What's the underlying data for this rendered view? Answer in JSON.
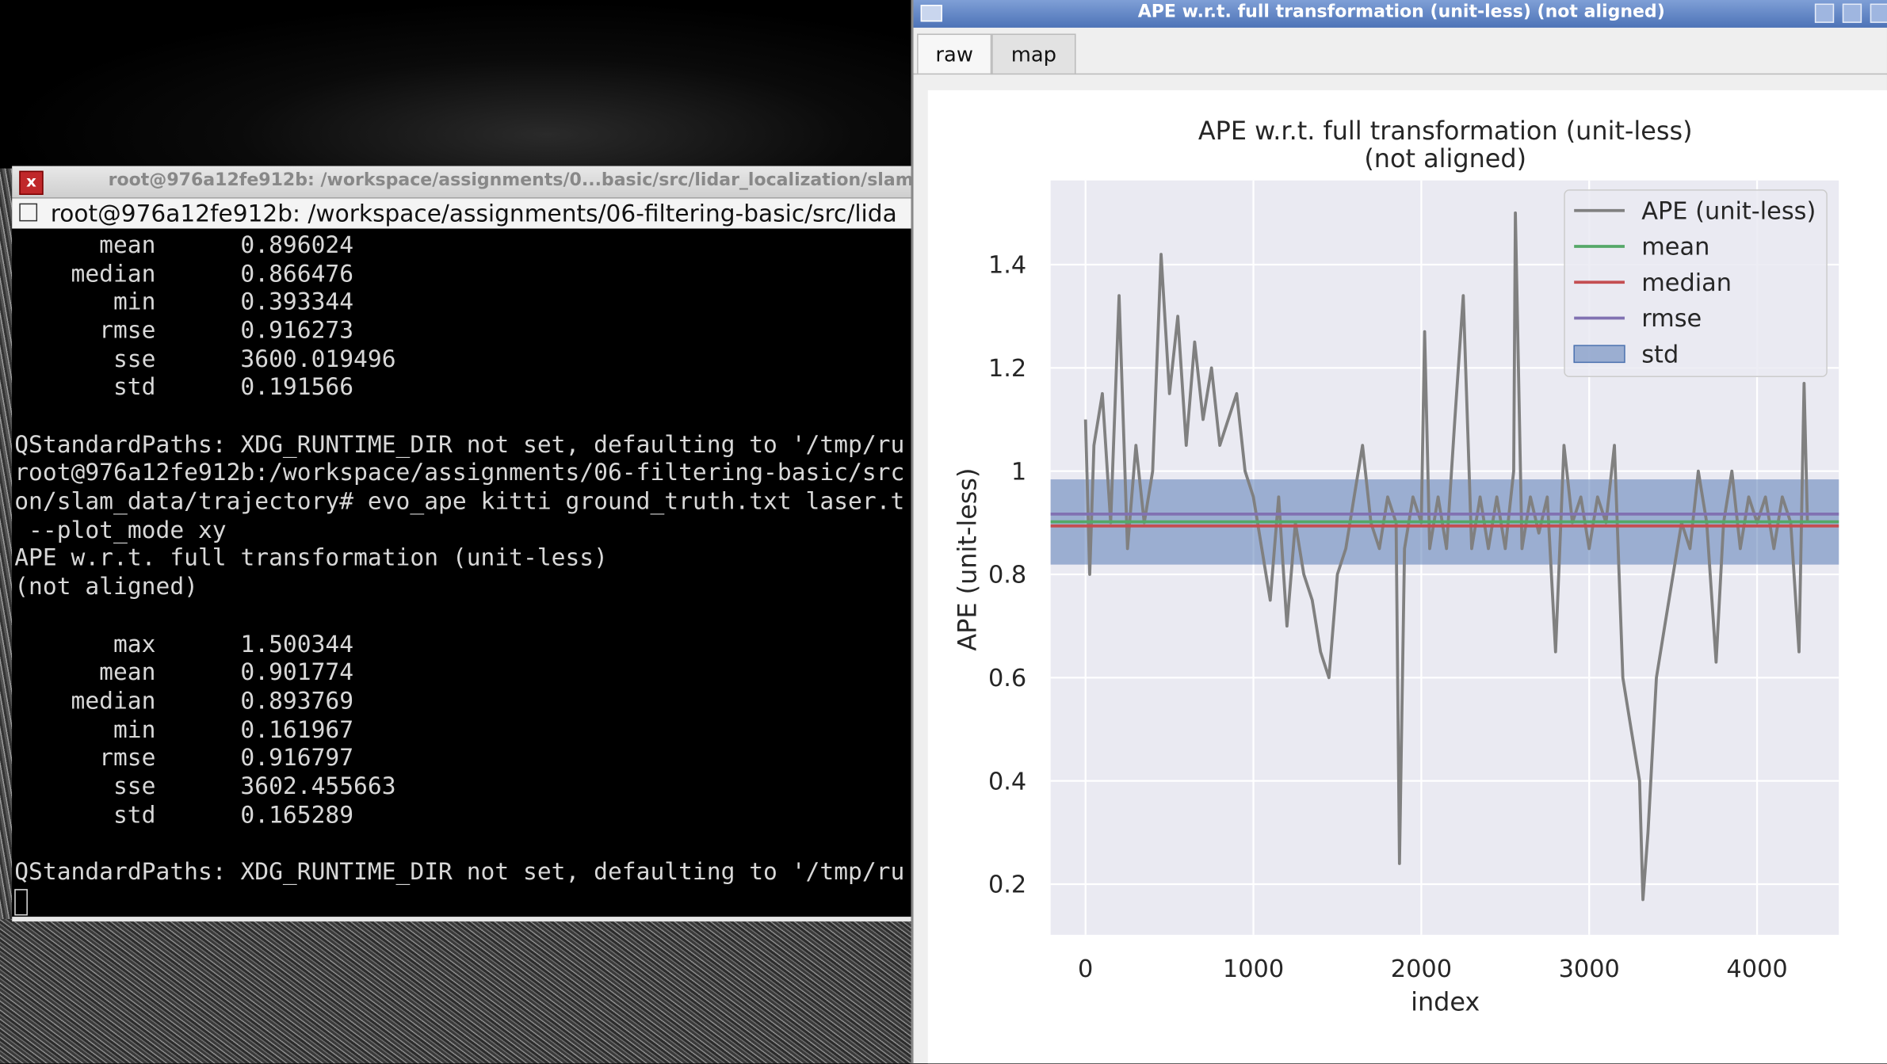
{
  "terminal": {
    "window_title": "root@976a12fe912b: /workspace/assignments/0...basic/src/lidar_localization/slam",
    "close_icon": "x",
    "tab_title": "root@976a12fe912b: /workspace/assignments/06-filtering-basic/src/lida",
    "stats_1": [
      {
        "label": "mean",
        "value": "0.896024"
      },
      {
        "label": "median",
        "value": "0.866476"
      },
      {
        "label": "min",
        "value": "0.393344"
      },
      {
        "label": "rmse",
        "value": "0.916273"
      },
      {
        "label": "sse",
        "value": "3600.019496"
      },
      {
        "label": "std",
        "value": "0.191566"
      }
    ],
    "messages_1": [
      "QStandardPaths: XDG_RUNTIME_DIR not set, defaulting to '/tmp/ru",
      "root@976a12fe912b:/workspace/assignments/06-filtering-basic/src",
      "on/slam_data/trajectory# evo_ape kitti ground_truth.txt laser.t",
      " --plot_mode xy",
      "APE w.r.t. full transformation (unit-less)",
      "(not aligned)"
    ],
    "stats_2": [
      {
        "label": "max",
        "value": "1.500344"
      },
      {
        "label": "mean",
        "value": "0.901774"
      },
      {
        "label": "median",
        "value": "0.893769"
      },
      {
        "label": "min",
        "value": "0.161967"
      },
      {
        "label": "rmse",
        "value": "0.916797"
      },
      {
        "label": "sse",
        "value": "3602.455663"
      },
      {
        "label": "std",
        "value": "0.165289"
      }
    ],
    "messages_2": [
      "QStandardPaths: XDG_RUNTIME_DIR not set, defaulting to '/tmp/ru"
    ]
  },
  "plot_window": {
    "title": "APE w.r.t. full transformation (unit-less) (not aligned)",
    "tabs": [
      "raw",
      "map"
    ]
  },
  "chart_data": {
    "type": "line",
    "title": "APE w.r.t. full transformation (unit-less)",
    "subtitle": "(not aligned)",
    "x_label": "index",
    "y_label": "APE (unit-less)",
    "xlim": [
      -208,
      4487
    ],
    "ylim": [
      0.102,
      1.563
    ],
    "xticks": [
      0,
      1000,
      2000,
      3000,
      4000
    ],
    "yticks": [
      0.2,
      0.4,
      0.6,
      0.8,
      1.0,
      1.2,
      1.4
    ],
    "grid": true,
    "legend": "upper right",
    "series": [
      {
        "name": "APE (unit-less)",
        "color": "#808080",
        "x": [
          0,
          25,
          50,
          100,
          150,
          200,
          250,
          300,
          350,
          400,
          450,
          500,
          550,
          600,
          650,
          700,
          750,
          800,
          850,
          900,
          950,
          1000,
          1050,
          1100,
          1150,
          1200,
          1250,
          1300,
          1350,
          1400,
          1450,
          1500,
          1550,
          1600,
          1650,
          1700,
          1750,
          1800,
          1850,
          1870,
          1900,
          1950,
          2000,
          2020,
          2050,
          2100,
          2150,
          2200,
          2250,
          2300,
          2350,
          2400,
          2450,
          2500,
          2550,
          2560,
          2600,
          2650,
          2700,
          2750,
          2800,
          2850,
          2900,
          2950,
          3000,
          3050,
          3100,
          3150,
          3200,
          3250,
          3300,
          3320,
          3350,
          3400,
          3450,
          3500,
          3550,
          3600,
          3650,
          3700,
          3756,
          3800,
          3850,
          3900,
          3950,
          4000,
          4050,
          4100,
          4150,
          4200,
          4250,
          4280,
          4300
        ],
        "values": [
          1.1,
          0.8,
          1.05,
          1.15,
          0.9,
          1.34,
          0.85,
          1.05,
          0.9,
          1.0,
          1.42,
          1.15,
          1.3,
          1.05,
          1.25,
          1.1,
          1.2,
          1.05,
          1.1,
          1.15,
          1.0,
          0.95,
          0.85,
          0.75,
          0.95,
          0.7,
          0.9,
          0.8,
          0.75,
          0.65,
          0.6,
          0.8,
          0.85,
          0.95,
          1.05,
          0.9,
          0.85,
          0.95,
          0.9,
          0.24,
          0.85,
          0.95,
          0.9,
          1.27,
          0.85,
          0.95,
          0.85,
          1.1,
          1.34,
          0.85,
          0.95,
          0.85,
          0.95,
          0.85,
          1.0,
          1.5,
          0.85,
          0.95,
          0.88,
          0.95,
          0.65,
          1.05,
          0.9,
          0.95,
          0.85,
          0.95,
          0.9,
          1.05,
          0.6,
          0.5,
          0.4,
          0.17,
          0.3,
          0.6,
          0.7,
          0.8,
          0.9,
          0.85,
          1.0,
          0.9,
          0.63,
          0.9,
          1.0,
          0.85,
          0.95,
          0.9,
          0.95,
          0.85,
          0.95,
          0.9,
          0.65,
          1.17,
          0.9
        ]
      },
      {
        "name": "mean",
        "color": "#55a868",
        "value": 0.9018
      },
      {
        "name": "median",
        "color": "#c44e52",
        "value": 0.8938
      },
      {
        "name": "rmse",
        "color": "#8172b2",
        "value": 0.9168
      },
      {
        "name": "std",
        "color": "#4c72b0",
        "range": [
          0.819,
          0.984
        ]
      }
    ]
  }
}
